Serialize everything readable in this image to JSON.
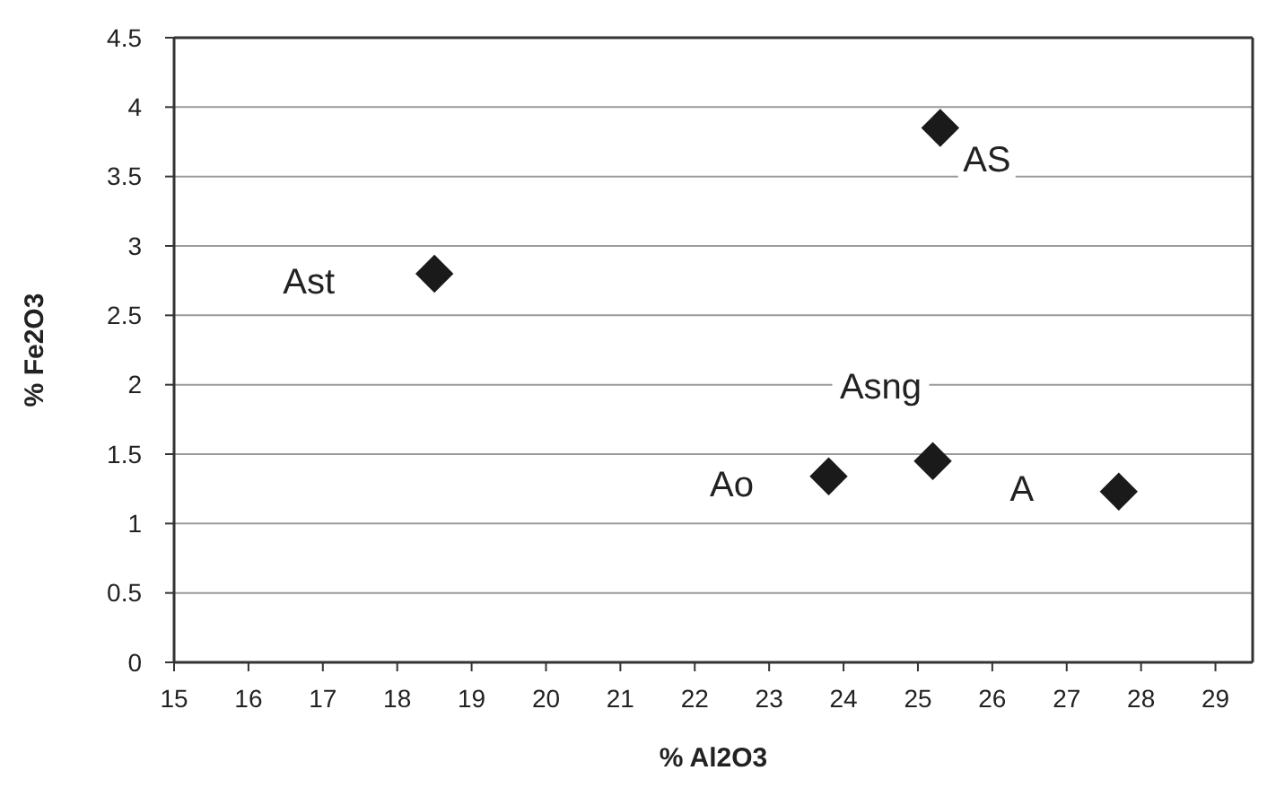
{
  "chart_data": {
    "type": "scatter",
    "xlabel": "% Al2O3",
    "ylabel": "% Fe2O3",
    "xlim": [
      15,
      29.5
    ],
    "xticks": [
      15,
      16,
      17,
      18,
      19,
      20,
      21,
      22,
      23,
      24,
      25,
      26,
      27,
      28,
      29
    ],
    "ylim": [
      0,
      4.5
    ],
    "yticks": [
      0,
      0.5,
      1,
      1.5,
      2,
      2.5,
      3,
      3.5,
      4,
      4.5
    ],
    "grid": "y",
    "marker": "diamond",
    "series": [
      {
        "name": "Ast",
        "color": "#1a1a1a",
        "x": [
          18.5
        ],
        "values": [
          2.8
        ]
      },
      {
        "name": "AS",
        "color": "#1a1a1a",
        "x": [
          25.3
        ],
        "values": [
          3.85
        ]
      },
      {
        "name": "Asng",
        "color": "#1a1a1a",
        "x": [
          25.2
        ],
        "values": [
          1.45
        ]
      },
      {
        "name": "Ao",
        "color": "#1a1a1a",
        "x": [
          23.8
        ],
        "values": [
          1.34
        ]
      },
      {
        "name": "A",
        "color": "#1a1a1a",
        "x": [
          27.7
        ],
        "values": [
          1.23
        ]
      }
    ]
  }
}
